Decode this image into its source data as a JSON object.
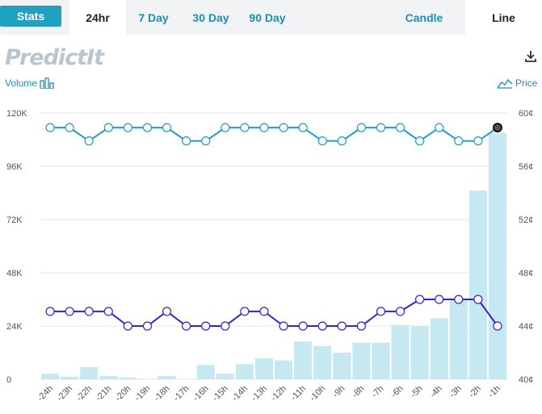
{
  "tabs": {
    "stats_label": "Stats",
    "ranges": [
      "24hr",
      "7 Day",
      "30 Day",
      "90 Day"
    ],
    "active_range": "24hr",
    "chart_types": [
      "Candle",
      "Line"
    ],
    "active_chart_type": "Line"
  },
  "logo_text": "PredictIt",
  "legend": {
    "volume_label": "Volume",
    "price_label": "Price"
  },
  "colors": {
    "accent": "#1fa1c1",
    "volume_bar": "#c5e8f1",
    "price_line": "#1e9cc4",
    "second_line": "#3b1fc7"
  },
  "chart_data": {
    "type": "line",
    "x": [
      "-24h",
      "-23h",
      "-22h",
      "-21h",
      "-20h",
      "-19h",
      "-18h",
      "-17h",
      "-16h",
      "-15h",
      "-14h",
      "-13h",
      "-12h",
      "-11h",
      "-10h",
      "-9h",
      "-8h",
      "-7h",
      "-6h",
      "-5h",
      "-4h",
      "-3h",
      "-2h",
      "-1h"
    ],
    "y_left_ticks": [
      "0",
      "24K",
      "48K",
      "72K",
      "96K",
      "120K"
    ],
    "y_left_range": [
      0,
      120000
    ],
    "y_right_ticks": [
      "40¢",
      "44¢",
      "48¢",
      "52¢",
      "56¢",
      "60¢"
    ],
    "y_right_range": [
      40,
      60
    ],
    "volume": [
      2500,
      1200,
      5500,
      1500,
      800,
      200,
      1500,
      0,
      6500,
      2500,
      6800,
      9500,
      8500,
      17000,
      15000,
      12000,
      16500,
      16500,
      24500,
      24000,
      27500,
      36000,
      85000,
      111000
    ],
    "series": [
      {
        "values": [
          58.9,
          58.9,
          57.9,
          58.9,
          58.9,
          58.9,
          58.9,
          57.9,
          57.9,
          58.9,
          58.9,
          58.9,
          58.9,
          58.9,
          57.9,
          57.9,
          58.9,
          58.9,
          58.9,
          57.9,
          58.9,
          57.9,
          57.9,
          58.9
        ]
      },
      {
        "values": [
          45.1,
          45.1,
          45.1,
          45.1,
          44.0,
          44.0,
          45.1,
          44.0,
          44.0,
          44.0,
          45.1,
          45.1,
          44.0,
          44.0,
          44.0,
          44.0,
          44.0,
          45.1,
          45.1,
          46.0,
          46.0,
          46.0,
          46.0,
          44.0
        ]
      }
    ],
    "grid": true
  }
}
